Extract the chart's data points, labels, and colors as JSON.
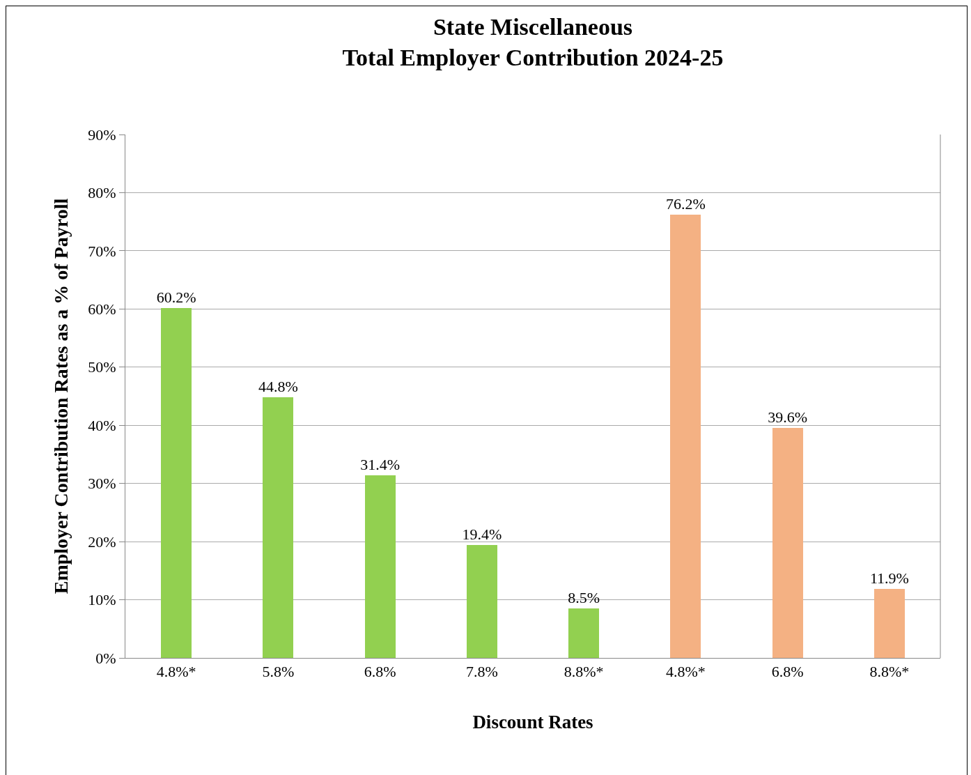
{
  "chart_data": {
    "type": "bar",
    "title": "State Miscellaneous\nTotal Employer Contribution 2024-25",
    "xlabel": "Discount Rates",
    "ylabel": "Employer Contribution Rates as a % of Payroll",
    "categories": [
      "4.8%*",
      "5.8%",
      "6.8%",
      "7.8%",
      "8.8%*",
      "4.8%*",
      "6.8%",
      "8.8%*"
    ],
    "values": [
      60.2,
      44.8,
      31.4,
      19.4,
      8.5,
      76.2,
      39.6,
      11.9
    ],
    "value_labels": [
      "60.2%",
      "44.8%",
      "31.4%",
      "19.4%",
      "8.5%",
      "76.2%",
      "39.6%",
      "11.9%"
    ],
    "colors": [
      "#92d050",
      "#92d050",
      "#92d050",
      "#92d050",
      "#92d050",
      "#f4b183",
      "#f4b183",
      "#f4b183"
    ],
    "ylim": [
      0,
      90
    ],
    "yticks": [
      {
        "value": 0,
        "label": "0%"
      },
      {
        "value": 10,
        "label": "10%"
      },
      {
        "value": 20,
        "label": "20%"
      },
      {
        "value": 30,
        "label": "30%"
      },
      {
        "value": 40,
        "label": "40%"
      },
      {
        "value": 50,
        "label": "50%"
      },
      {
        "value": 60,
        "label": "60%"
      },
      {
        "value": 70,
        "label": "70%"
      },
      {
        "value": 80,
        "label": "80%"
      },
      {
        "value": 90,
        "label": "90%"
      }
    ],
    "grid": "y"
  }
}
